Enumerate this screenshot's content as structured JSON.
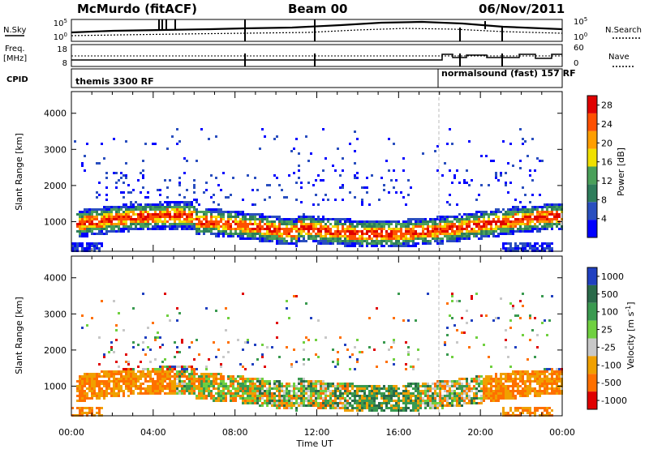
{
  "header": {
    "station": "McMurdo (fitACF)",
    "beam": "Beam 00",
    "date": "06/Nov/2011"
  },
  "panels_top": {
    "nsky_label": "N.Sky",
    "nsky_tick_high": "10^5",
    "nsky_tick_low": "10^0",
    "nsearch_label": "N.Search",
    "nsearch_tick_high": "10^5",
    "nsearch_tick_low": "10^0",
    "freq_label_1": "Freq.",
    "freq_label_2": "[MHz]",
    "freq_tick_high": "18",
    "freq_tick_low": "8",
    "nave_label": "Nave",
    "nave_tick_high": "60",
    "nave_tick_low": "0",
    "cpid_label": "CPID",
    "cpid_left": "themis 3300 RF",
    "cpid_right": "normalsound (fast) 157 RF"
  },
  "chart_data": [
    {
      "type": "heatmap",
      "title": "",
      "xlabel": "Time UT",
      "ylabel": "Slant Range [km]",
      "x_ticks": [
        "00:00",
        "04:00",
        "08:00",
        "12:00",
        "16:00",
        "20:00",
        "00:00"
      ],
      "x_range_hours": [
        0,
        24
      ],
      "y_range_km": [
        180,
        4600
      ],
      "y_ticks": [
        1000,
        2000,
        3000,
        4000
      ],
      "colorbar": {
        "label": "Power [dB]",
        "ticks": [
          4,
          8,
          12,
          16,
          20,
          24,
          28
        ],
        "range": [
          0,
          30
        ],
        "colors": [
          "#0000ff",
          "#2a4fbf",
          "#2e7d5b",
          "#4aa05a",
          "#f0e000",
          "#ff9e00",
          "#ff5000",
          "#e00000"
        ]
      },
      "echo_band_km": [
        700,
        1500
      ],
      "mode_change_hour": 18.2
    },
    {
      "type": "heatmap",
      "title": "",
      "xlabel": "Time UT",
      "ylabel": "Slant Range [km]",
      "x_ticks": [
        "00:00",
        "04:00",
        "08:00",
        "12:00",
        "16:00",
        "20:00",
        "00:00"
      ],
      "x_range_hours": [
        0,
        24
      ],
      "y_range_km": [
        180,
        4600
      ],
      "y_ticks": [
        1000,
        2000,
        3000,
        4000
      ],
      "colorbar": {
        "label": "Velocity [m s^-1]",
        "ticks": [
          "1000",
          "500",
          "100",
          "25",
          "-25",
          "-100",
          "-500",
          "-1000"
        ],
        "colors": [
          "#2040c0",
          "#2a6a4a",
          "#3a9a50",
          "#70d040",
          "#c8c8c8",
          "#f0a000",
          "#ff7000",
          "#e00000"
        ]
      },
      "echo_band_km": [
        700,
        1500
      ],
      "mode_change_hour": 18.2
    }
  ]
}
